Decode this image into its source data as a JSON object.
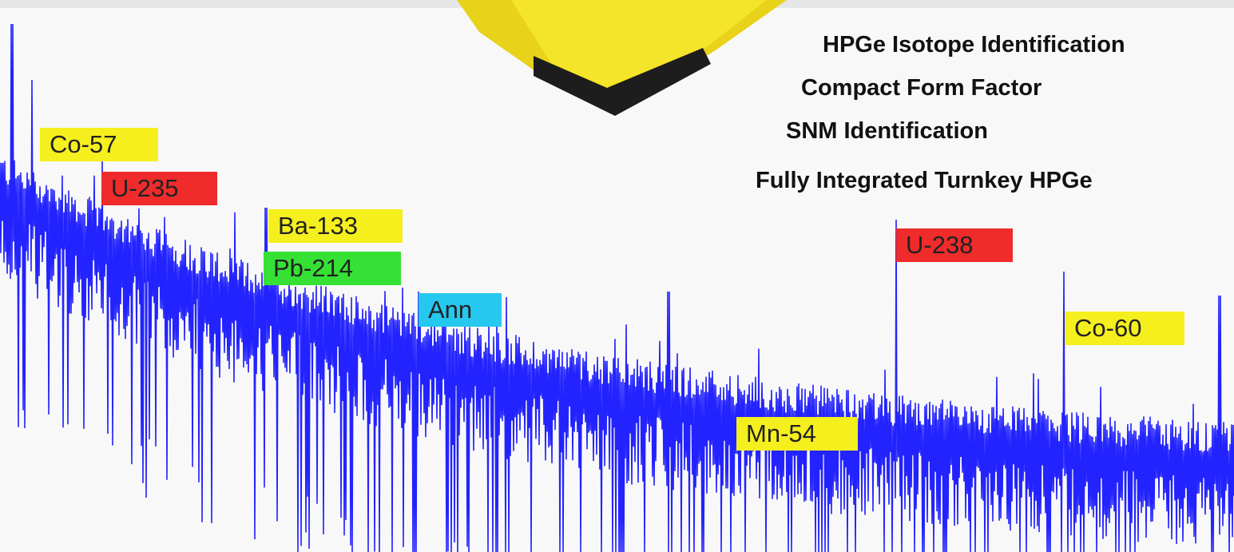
{
  "features": [
    "HPGe Isotope Identification",
    "Compact Form Factor",
    "SNM Identification",
    "Fully Integrated Turnkey HPGe"
  ],
  "peak_labels": [
    "Co-57",
    "U-235",
    "Ba-133",
    "Pb-214",
    "Ann",
    "U-238",
    "Co-60",
    "Mn-54"
  ]
}
